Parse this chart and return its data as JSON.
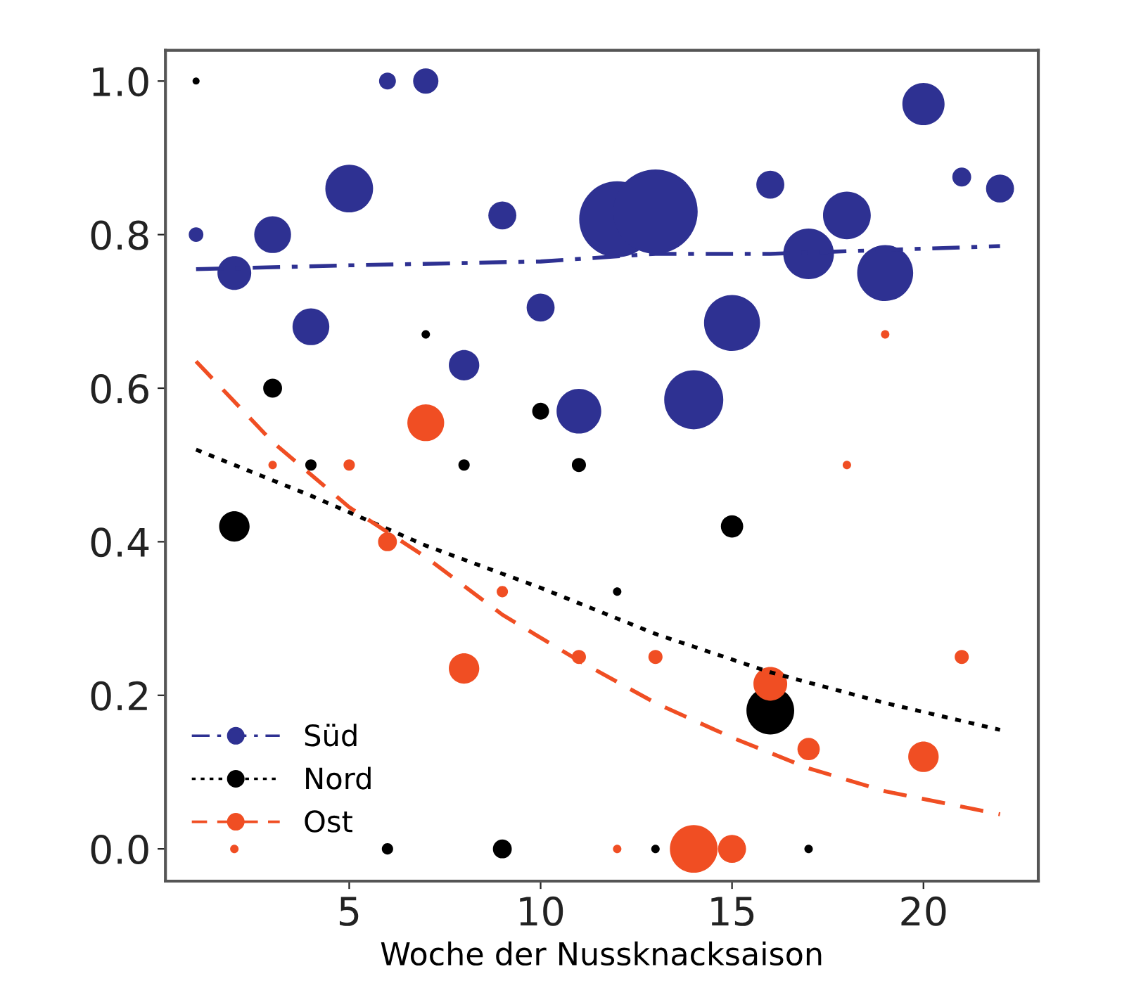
{
  "chart_data": {
    "type": "bubble",
    "xlabel": "Woche der Nussknacksaison",
    "xlim": [
      0.2,
      23
    ],
    "xticks": [
      5,
      10,
      15,
      20
    ],
    "ylim": [
      -0.042,
      1.04
    ],
    "yticks": [
      {
        "value": 0,
        "label": "0.0"
      },
      {
        "value": 0.2,
        "label": "0.2"
      },
      {
        "value": 0.4,
        "label": "0.4"
      },
      {
        "value": 0.6,
        "label": "0.6"
      },
      {
        "value": 0.8,
        "label": "0.8"
      },
      {
        "value": 1,
        "label": "1.0"
      }
    ],
    "grid": false,
    "legend": "bottom left",
    "series": [
      {
        "name": "Süd",
        "marker": "circle",
        "color": "#2e3192",
        "line_style": "dashdot",
        "x": [
          1,
          2,
          3,
          4,
          5,
          6,
          7,
          8,
          9,
          10,
          11,
          12,
          13,
          14,
          15,
          16,
          17,
          18,
          19,
          20,
          21,
          22
        ],
        "values": [
          0.8,
          0.75,
          0.8,
          0.68,
          0.86,
          1.0,
          1.0,
          0.63,
          0.825,
          0.705,
          0.57,
          0.82,
          0.83,
          0.585,
          0.685,
          0.865,
          0.775,
          0.825,
          0.75,
          0.97,
          0.875,
          0.86
        ],
        "sizes": [
          0.03,
          0.16,
          0.19,
          0.19,
          0.32,
          0.04,
          0.09,
          0.13,
          0.11,
          0.11,
          0.28,
          0.81,
          1.0,
          0.49,
          0.44,
          0.11,
          0.36,
          0.32,
          0.44,
          0.25,
          0.05,
          0.11
        ]
      },
      {
        "name": "Nord",
        "marker": "circle",
        "color": "#000000",
        "line_style": "dotted",
        "x": [
          1,
          2,
          3,
          4,
          6,
          7,
          8,
          9,
          10,
          11,
          12,
          13,
          15,
          16,
          17
        ],
        "values": [
          1.0,
          0.42,
          0.6,
          0.5,
          0.0,
          0.67,
          0.5,
          0.0,
          0.57,
          0.5,
          0.335,
          0.0,
          0.42,
          0.18,
          0.0
        ],
        "sizes": [
          0.007,
          0.13,
          0.05,
          0.018,
          0.018,
          0.01,
          0.018,
          0.05,
          0.04,
          0.028,
          0.01,
          0.01,
          0.07,
          0.32,
          0.01
        ]
      },
      {
        "name": "Ost",
        "marker": "circle",
        "color": "#f04e23",
        "line_style": "dashed",
        "x": [
          2,
          3,
          5,
          6,
          7,
          8,
          9,
          11,
          12,
          13,
          14,
          15,
          16,
          17,
          18,
          19,
          20,
          21
        ],
        "values": [
          0.0,
          0.5,
          0.5,
          0.4,
          0.555,
          0.235,
          0.335,
          0.25,
          0.0,
          0.25,
          0.0,
          0.0,
          0.215,
          0.13,
          0.5,
          0.67,
          0.12,
          0.25
        ],
        "sizes": [
          0.01,
          0.01,
          0.018,
          0.05,
          0.19,
          0.13,
          0.018,
          0.028,
          0.01,
          0.028,
          0.32,
          0.11,
          0.16,
          0.07,
          0.01,
          0.01,
          0.13,
          0.028
        ]
      },
      {
        "type": "line",
        "marker": "none",
        "color": "#2e3192",
        "line_style": "dashdot",
        "x": [
          1,
          5,
          10,
          13,
          16,
          22
        ],
        "values": [
          0.755,
          0.76,
          0.765,
          0.775,
          0.775,
          0.785
        ]
      },
      {
        "type": "line",
        "marker": "none",
        "color": "#000000",
        "line_style": "dotted",
        "x": [
          1,
          4,
          7,
          10,
          13,
          16,
          19,
          22
        ],
        "values": [
          0.52,
          0.46,
          0.395,
          0.34,
          0.28,
          0.23,
          0.19,
          0.155
        ]
      },
      {
        "type": "line",
        "marker": "none",
        "color": "#f04e23",
        "line_style": "dashed",
        "x": [
          1,
          3,
          5,
          7,
          9,
          11,
          13,
          15,
          17,
          19,
          22
        ],
        "values": [
          0.635,
          0.53,
          0.445,
          0.38,
          0.305,
          0.245,
          0.19,
          0.145,
          0.105,
          0.075,
          0.045
        ]
      }
    ]
  }
}
